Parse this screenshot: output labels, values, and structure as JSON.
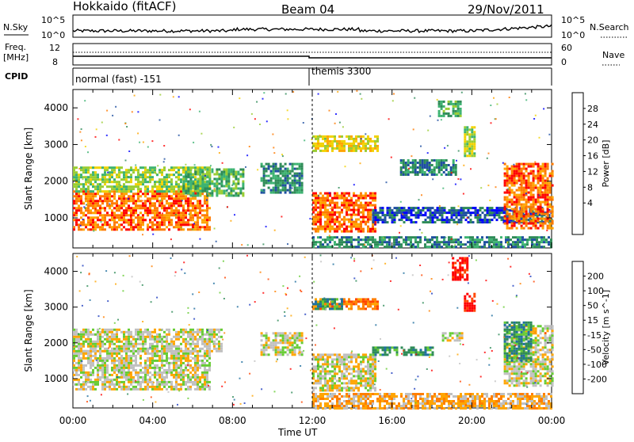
{
  "header": {
    "title": "Hokkaido (fitACF)",
    "beam": "Beam 04",
    "date": "29/Nov/2011"
  },
  "top_panels": {
    "nsky_label": "N.Sky",
    "nsky_ticks": [
      "10^5",
      "10^0"
    ],
    "nsearch_label": "N.Search",
    "nsearch_ticks": [
      "10^5",
      "10^0"
    ],
    "freq_label": "Freq.",
    "freq_unit": "[MHz]",
    "freq_ticks": [
      "12",
      "8"
    ],
    "nave_label": "Nave",
    "nave_ticks": [
      "60",
      "0"
    ],
    "cpid_label": "CPID",
    "cpid_segments": [
      {
        "text": "normal (fast) -151"
      },
      {
        "text": "themis 3300"
      }
    ]
  },
  "x_axis": {
    "label": "Time UT",
    "ticks": [
      "00:00",
      "04:00",
      "08:00",
      "12:00",
      "16:00",
      "20:00",
      "00:00"
    ],
    "range_hours": [
      0,
      24
    ]
  },
  "chart_data": [
    {
      "type": "heatmap",
      "quantity": "Power",
      "ylabel": "Slant Range [km]",
      "ylim": [
        180,
        4500
      ],
      "yticks": [
        1000,
        2000,
        3000,
        4000
      ],
      "colorbar_label": "Power [dB]",
      "colorbar_ticks": [
        "28",
        "24",
        "20",
        "16",
        "12",
        "8",
        "4"
      ],
      "colorbar_colors": [
        "#ff0000",
        "#ff7a00",
        "#ffa500",
        "#f2d200",
        "#9acd32",
        "#3cb371",
        "#2e8b57",
        "#1e4fa0",
        "#0000ff"
      ],
      "regions": [
        {
          "t0": 0.0,
          "t1": 6.9,
          "r0": 700,
          "r1": 1750,
          "level": 0.85
        },
        {
          "t0": 0.0,
          "t1": 6.9,
          "r0": 1750,
          "r1": 2400,
          "level": 0.5
        },
        {
          "t0": 5.5,
          "t1": 8.5,
          "r0": 1600,
          "r1": 2350,
          "level": 0.4
        },
        {
          "t0": 9.4,
          "t1": 11.5,
          "r0": 1700,
          "r1": 2500,
          "level": 0.25
        },
        {
          "t0": 12.0,
          "t1": 15.1,
          "r0": 650,
          "r1": 1700,
          "level": 0.9
        },
        {
          "t0": 12.0,
          "t1": 15.3,
          "r0": 2850,
          "r1": 3250,
          "level": 0.6
        },
        {
          "t0": 15.0,
          "t1": 24.0,
          "r0": 900,
          "r1": 1300,
          "level": 0.15
        },
        {
          "t0": 16.4,
          "t1": 19.2,
          "r0": 2150,
          "r1": 2600,
          "level": 0.2
        },
        {
          "t0": 18.3,
          "t1": 19.4,
          "r0": 3800,
          "r1": 4200,
          "level": 0.35
        },
        {
          "t0": 19.6,
          "t1": 20.1,
          "r0": 2700,
          "r1": 3500,
          "level": 0.45
        },
        {
          "t0": 21.6,
          "t1": 24.0,
          "r0": 700,
          "r1": 2500,
          "level": 0.9
        },
        {
          "t0": 12.0,
          "t1": 24.0,
          "r0": 200,
          "r1": 500,
          "level": 0.3
        }
      ]
    },
    {
      "type": "heatmap",
      "quantity": "Velocity",
      "ylabel": "Slant Range [km]",
      "ylim": [
        180,
        4500
      ],
      "yticks": [
        1000,
        2000,
        3000,
        4000
      ],
      "colorbar_label": "Velocity [m s^-1]",
      "colorbar_ticks": [
        "200",
        "100",
        "50",
        "15",
        "-15",
        "-50",
        "-100",
        "-200"
      ],
      "colorbar_colors": [
        "#1f3fbf",
        "#1f6f9f",
        "#2e8b57",
        "#66cc33",
        "#c0c0c0",
        "#ffa500",
        "#ff7f00",
        "#ff4500",
        "#ff0000"
      ],
      "regions": [
        {
          "t0": 0.0,
          "t1": 6.9,
          "r0": 700,
          "r1": 1800,
          "v": 0
        },
        {
          "t0": 0.0,
          "t1": 7.5,
          "r0": 1800,
          "r1": 2400,
          "v": 0
        },
        {
          "t0": 9.4,
          "t1": 11.5,
          "r0": 1700,
          "r1": 2300,
          "v": 0
        },
        {
          "t0": 12.0,
          "t1": 15.1,
          "r0": 700,
          "r1": 1700,
          "v": 0
        },
        {
          "t0": 12.0,
          "t1": 15.3,
          "r0": 2950,
          "r1": 3250,
          "v": -60
        },
        {
          "t0": 12.0,
          "t1": 13.5,
          "r0": 2950,
          "r1": 3250,
          "v": 50
        },
        {
          "t0": 12.0,
          "t1": 24.0,
          "r0": 200,
          "r1": 600,
          "v": -40
        },
        {
          "t0": 15.0,
          "t1": 18.0,
          "r0": 1700,
          "r1": 1900,
          "v": 60
        },
        {
          "t0": 18.5,
          "t1": 19.5,
          "r0": 2100,
          "r1": 2300,
          "v": 0
        },
        {
          "t0": 19.0,
          "t1": 19.8,
          "r0": 3800,
          "r1": 4400,
          "v": -210
        },
        {
          "t0": 19.6,
          "t1": 20.1,
          "r0": 2900,
          "r1": 3400,
          "v": -210
        },
        {
          "t0": 21.6,
          "t1": 24.0,
          "r0": 800,
          "r1": 2500,
          "v": 0
        },
        {
          "t0": 21.6,
          "t1": 23.0,
          "r0": 1500,
          "r1": 2600,
          "v": 60
        }
      ]
    }
  ]
}
